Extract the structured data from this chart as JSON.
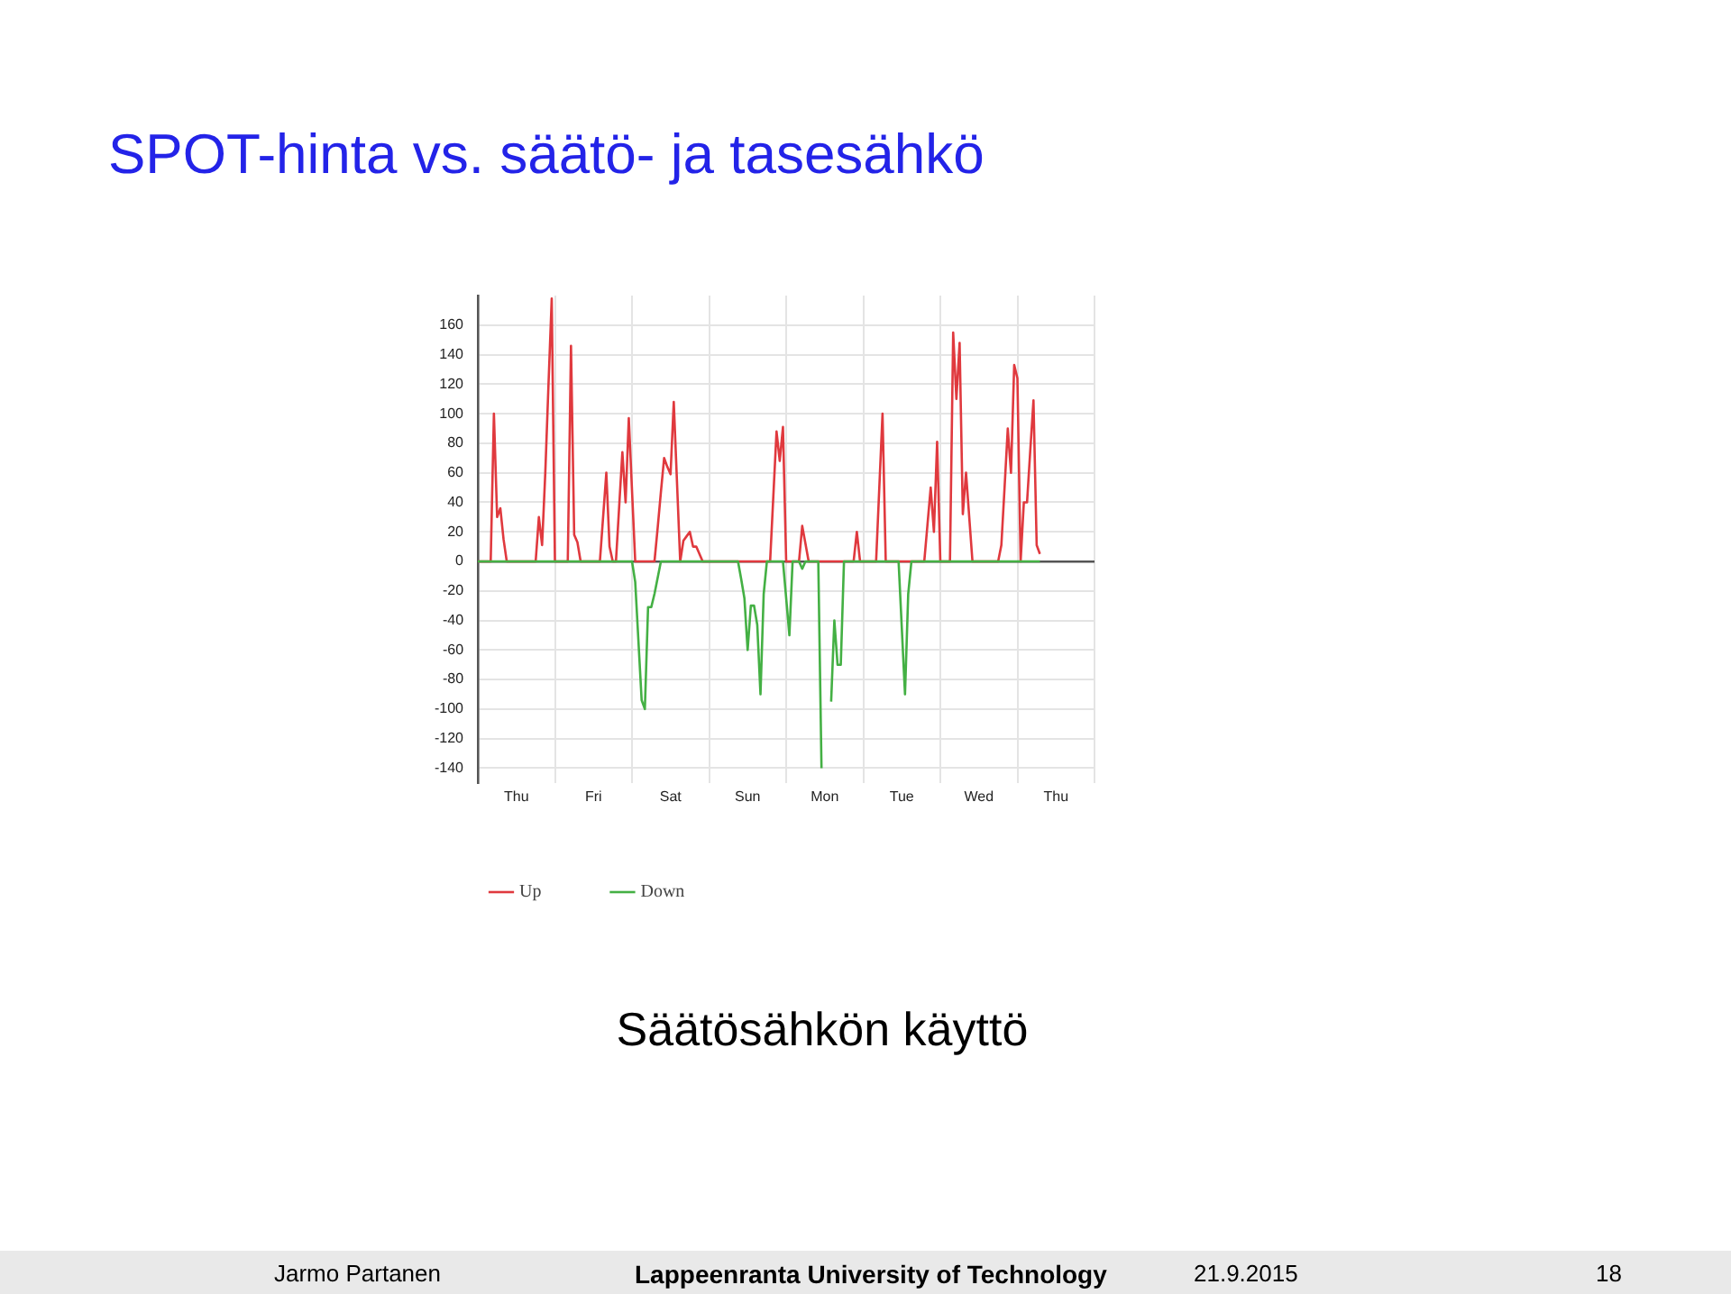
{
  "chart_data": {
    "type": "line",
    "title": "SPOT-hinta vs. säätö- ja tasesähkö",
    "annotations": [
      "Säätösähkön käyttö",
      "Jarmo Partanen",
      "Lappeenranta University of Technology",
      "21.9.2015",
      "18"
    ],
    "categories": [
      null,
      null,
      null,
      null,
      null,
      null,
      null,
      null,
      null,
      null,
      null,
      null,
      "Thu",
      null,
      null,
      null,
      null,
      null,
      null,
      null,
      null,
      null,
      null,
      null,
      null,
      null,
      null,
      null,
      null,
      null,
      null,
      null,
      null,
      null,
      null,
      null,
      "Fri",
      null,
      null,
      null,
      null,
      null,
      null,
      null,
      null,
      null,
      null,
      null,
      null,
      null,
      null,
      null,
      null,
      null,
      null,
      null,
      null,
      null,
      null,
      null,
      "Sat",
      null,
      null,
      null,
      null,
      null,
      null,
      null,
      null,
      null,
      null,
      null,
      null,
      null,
      null,
      null,
      null,
      null,
      null,
      null,
      null,
      null,
      null,
      null,
      "Sun",
      null,
      null,
      null,
      null,
      null,
      null,
      null,
      null,
      null,
      null,
      null,
      null,
      null,
      null,
      null,
      null,
      null,
      null,
      null,
      null,
      null,
      null,
      null,
      "Mon",
      null,
      null,
      null,
      null,
      null,
      null,
      null,
      null,
      null,
      null,
      null,
      null,
      null,
      null,
      null,
      null,
      null,
      null,
      null,
      null,
      null,
      null,
      null,
      "Tue",
      null,
      null,
      null,
      null,
      null,
      null,
      null,
      null,
      null,
      null,
      null,
      null,
      null,
      null,
      null,
      null,
      null,
      null,
      null,
      null,
      null,
      null,
      null,
      "Wed",
      null,
      null,
      null,
      null,
      null,
      null,
      null,
      null,
      null,
      null,
      null,
      null,
      null,
      null,
      null,
      null,
      null,
      null,
      null,
      null,
      null,
      null,
      null,
      "Thu",
      null,
      null,
      null,
      null,
      null,
      null,
      null,
      null,
      null,
      null,
      null,
      null
    ],
    "series": [
      {
        "name": "Up",
        "color": "#e0393e",
        "values": [
          0,
          0,
          0,
          0,
          0,
          100,
          30,
          36,
          15,
          0,
          0,
          0,
          0,
          0,
          0,
          0,
          0,
          0,
          0,
          30,
          11,
          60,
          120,
          178,
          0,
          0,
          0,
          0,
          0,
          146,
          18,
          13,
          0,
          0,
          0,
          0,
          0,
          0,
          0,
          30,
          60,
          10,
          0,
          0,
          37,
          74,
          40,
          97,
          48,
          0,
          0,
          0,
          0,
          0,
          0,
          0,
          23,
          47,
          70,
          64,
          59,
          108,
          54,
          0,
          14,
          17,
          20,
          10,
          10,
          5,
          0,
          0,
          0,
          0,
          0,
          0,
          0,
          0,
          0,
          0,
          0,
          0,
          0,
          0,
          0,
          0,
          0,
          0,
          0,
          0,
          0,
          0,
          44,
          88,
          68,
          91,
          0,
          0,
          0,
          0,
          0,
          24,
          12,
          0,
          0,
          0,
          0,
          0,
          0,
          0,
          0,
          0,
          0,
          0,
          0,
          0,
          0,
          0,
          20,
          0,
          0,
          0,
          0,
          0,
          0,
          50,
          100,
          0,
          0,
          0,
          0,
          0,
          0,
          0,
          0,
          0,
          0,
          0,
          0,
          0,
          25,
          50,
          20,
          81,
          0,
          0,
          0,
          0,
          155,
          110,
          148,
          32,
          60,
          30,
          0,
          0,
          0,
          0,
          0,
          0,
          0,
          0,
          0,
          11,
          50,
          90,
          60,
          133,
          124,
          0,
          40,
          40,
          75,
          109,
          11,
          5,
          null,
          null,
          null,
          null,
          null,
          null,
          null,
          null,
          null,
          null,
          null,
          null,
          null,
          null,
          null,
          null,
          null
        ]
      },
      {
        "name": "Down",
        "color": "#44b044",
        "values": [
          0,
          0,
          0,
          0,
          0,
          0,
          0,
          0,
          0,
          0,
          0,
          0,
          0,
          0,
          0,
          0,
          0,
          0,
          0,
          0,
          0,
          0,
          0,
          0,
          0,
          0,
          0,
          0,
          0,
          0,
          0,
          0,
          0,
          0,
          0,
          0,
          0,
          0,
          0,
          0,
          0,
          0,
          0,
          0,
          0,
          0,
          0,
          0,
          0,
          -14,
          -54,
          -94,
          -100,
          -31,
          -31,
          -22,
          -11,
          0,
          0,
          0,
          0,
          0,
          0,
          0,
          0,
          0,
          0,
          0,
          0,
          0,
          0,
          0,
          0,
          0,
          0,
          0,
          0,
          0,
          0,
          0,
          0,
          0,
          -12,
          -25,
          -60,
          -30,
          -30,
          -43,
          -90,
          -22,
          0,
          0,
          0,
          0,
          0,
          0,
          -25,
          -50,
          0,
          0,
          0,
          -5,
          0,
          0,
          0,
          0,
          0,
          -140,
          null,
          null,
          -95,
          -40,
          -70,
          -70,
          0,
          0,
          0,
          0,
          0,
          0,
          0,
          0,
          0,
          0,
          0,
          0,
          0,
          0,
          0,
          0,
          0,
          0,
          -45,
          -90,
          -22,
          0,
          0,
          0,
          0,
          0,
          0,
          0,
          0,
          0,
          0,
          0,
          0,
          0,
          0,
          0,
          0,
          0,
          0,
          0,
          0,
          0,
          0,
          0,
          0,
          0,
          0,
          0,
          0,
          0,
          0,
          0,
          0,
          0,
          0,
          0,
          0,
          0,
          0,
          0,
          0,
          0,
          null,
          null,
          null,
          null,
          null,
          null,
          null,
          null,
          null,
          null,
          null,
          null,
          null,
          null,
          null,
          null,
          null
        ]
      }
    ],
    "ylim": [
      -150,
      180
    ],
    "yticks": [
      -140,
      -120,
      -100,
      -80,
      -60,
      -40,
      -20,
      0,
      20,
      40,
      60,
      80,
      100,
      120,
      140,
      160
    ],
    "grid": true,
    "legend": "bottom left",
    "marker": "none",
    "line_style": "solid"
  }
}
